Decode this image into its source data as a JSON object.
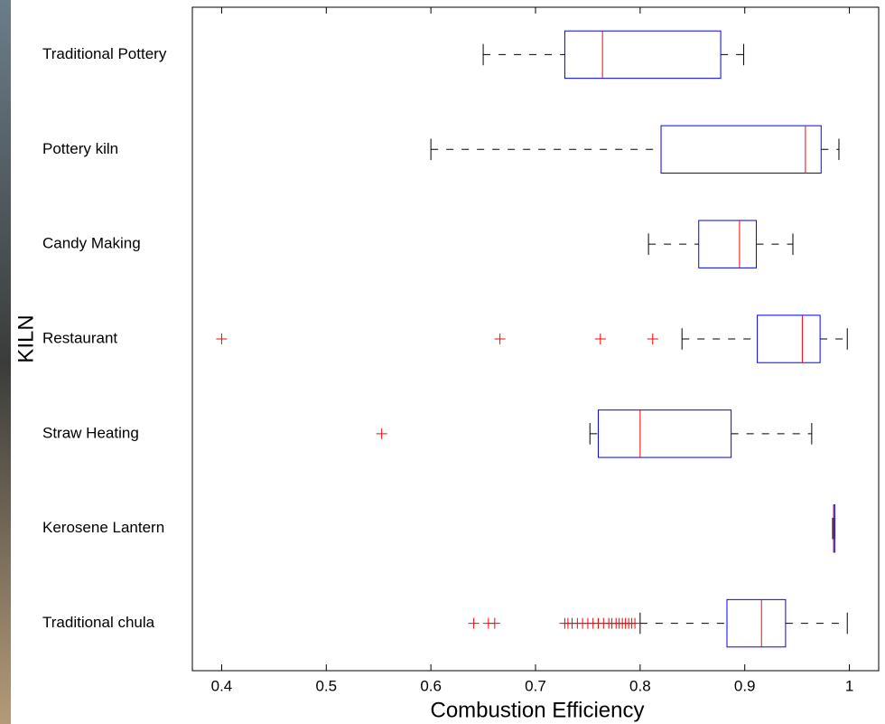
{
  "chart_data": {
    "type": "boxplot",
    "orientation": "horizontal",
    "xlabel": "Combustion Efficiency",
    "ylabel": "KILN",
    "categories": [
      "Traditional Pottery",
      "Pottery kiln",
      "Candy Making",
      "Restaurant",
      "Straw Heating",
      "Kerosene Lantern",
      "Traditional chula"
    ],
    "boxes": [
      {
        "low": 0.65,
        "q1": 0.728,
        "median": 0.764,
        "q3": 0.877,
        "high": 0.899,
        "outliers": []
      },
      {
        "low": 0.6,
        "q1": 0.82,
        "median": 0.958,
        "q3": 0.973,
        "high": 0.99,
        "outliers": []
      },
      {
        "low": 0.808,
        "q1": 0.856,
        "median": 0.895,
        "q3": 0.911,
        "high": 0.946,
        "outliers": []
      },
      {
        "low": 0.84,
        "q1": 0.912,
        "median": 0.955,
        "q3": 0.972,
        "high": 0.998,
        "outliers": [
          0.4,
          0.666,
          0.762,
          0.812
        ]
      },
      {
        "low": 0.752,
        "q1": 0.76,
        "median": 0.8,
        "q3": 0.887,
        "high": 0.964,
        "outliers": [
          0.553
        ]
      },
      {
        "low": 0.984,
        "q1": 0.985,
        "median": 0.985,
        "q3": 0.986,
        "high": 0.986,
        "outliers": []
      },
      {
        "low": 0.8,
        "q1": 0.883,
        "median": 0.916,
        "q3": 0.939,
        "high": 0.998,
        "outliers": [
          0.641,
          0.655,
          0.661,
          0.728,
          0.731,
          0.735,
          0.74,
          0.745,
          0.75,
          0.755,
          0.76,
          0.765,
          0.77,
          0.773,
          0.777,
          0.78,
          0.783,
          0.786,
          0.789,
          0.792,
          0.795
        ]
      }
    ],
    "xlim": [
      0.372,
      1.028
    ],
    "xticks": [
      0.4,
      0.5,
      0.6,
      0.7,
      0.8,
      0.9,
      1
    ],
    "box_color": "#0000ff",
    "median_color": "#ff0000",
    "whisker_color": "#000000",
    "outlier_color": "#ff0000"
  }
}
